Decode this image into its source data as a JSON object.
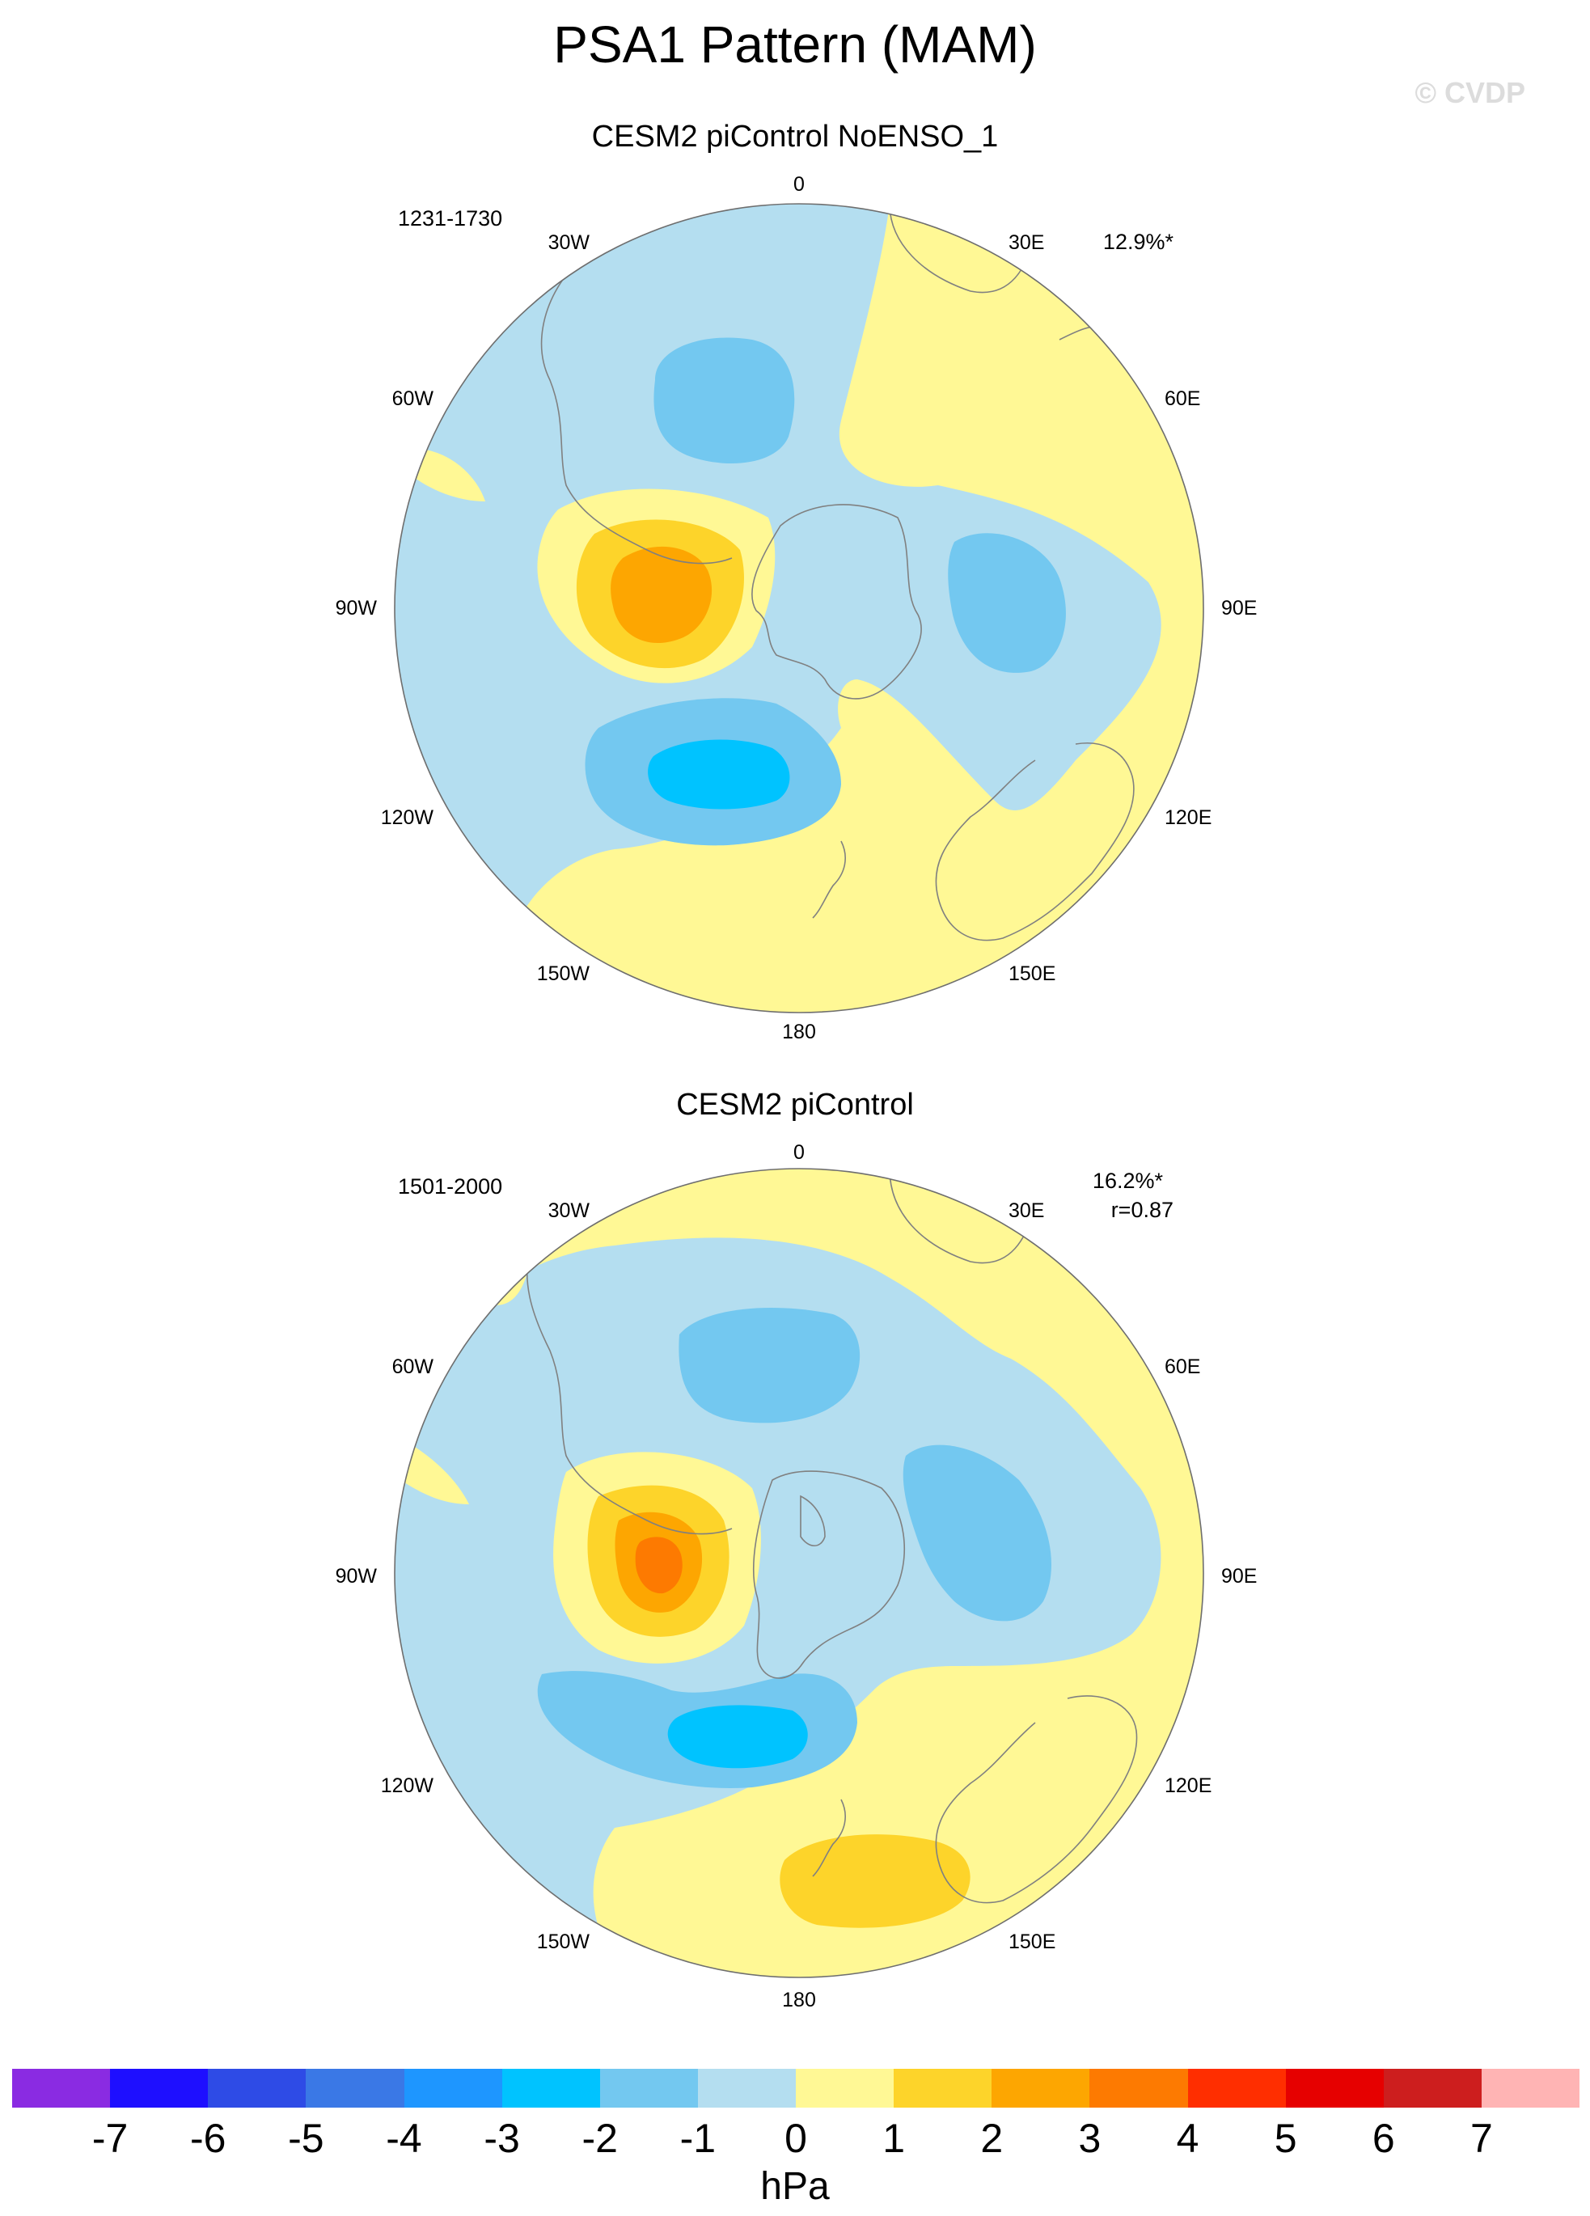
{
  "figure": {
    "title": "PSA1 Pattern (MAM)",
    "watermark": "© CVDP",
    "units": "hPa"
  },
  "lon_labels": {
    "n": "0",
    "ne": "30E",
    "e1": "60E",
    "e": "90E",
    "se1": "120E",
    "se": "150E",
    "s": "180",
    "sw": "150W",
    "sw1": "120W",
    "w": "90W",
    "nw1": "60W",
    "nw": "30W"
  },
  "panels": [
    {
      "title": "CESM2 piControl NoENSO_1",
      "years": "1231-1730",
      "pct_var": "12.9%*",
      "corr": ""
    },
    {
      "title": "CESM2 piControl",
      "years": "1501-2000",
      "pct_var": "16.2%*",
      "corr": "r=0.87"
    }
  ],
  "colorbar": {
    "colors": [
      "#8a2be2",
      "#1e0fff",
      "#2e4be6",
      "#3a78e6",
      "#1e96ff",
      "#00c3ff",
      "#73c8f0",
      "#b4def0",
      "#fff895",
      "#fdd42a",
      "#fda601",
      "#fd7a01",
      "#ff2e00",
      "#e60000",
      "#cd1e1e",
      "#ffb4b4"
    ],
    "ticks": [
      "-7",
      "-6",
      "-5",
      "-4",
      "-3",
      "-2",
      "-1",
      "0",
      "1",
      "2",
      "3",
      "4",
      "5",
      "6",
      "7"
    ]
  },
  "legend_colors": {
    "neg1": "#b4def0",
    "neg2": "#73c8f0",
    "neg3": "#00c3ff",
    "pos1": "#fff895",
    "pos2": "#fdd42a",
    "pos3": "#fda601",
    "pos4": "#fd7a01"
  }
}
